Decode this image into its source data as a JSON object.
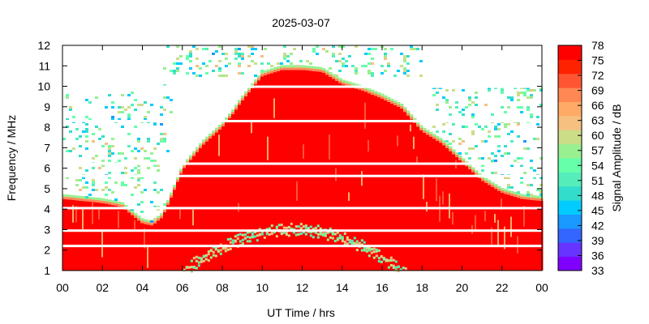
{
  "chart_data": {
    "type": "heatmap",
    "title": "2025-03-07",
    "xlabel": "UT Time / hrs",
    "ylabel": "Frequency / MHz",
    "colorbar_label": "Signal Amplitude / dB",
    "x_ticks": [
      "00",
      "02",
      "04",
      "06",
      "08",
      "10",
      "12",
      "14",
      "16",
      "18",
      "20",
      "22",
      "00"
    ],
    "x_range_hours": [
      0,
      24
    ],
    "y_ticks": [
      "1",
      "2",
      "3",
      "4",
      "5",
      "6",
      "7",
      "8",
      "9",
      "10",
      "11",
      "12"
    ],
    "y_range_mhz": [
      1,
      12
    ],
    "colorbar_ticks": [
      "33",
      "36",
      "39",
      "42",
      "45",
      "48",
      "51",
      "54",
      "57",
      "60",
      "63",
      "66",
      "69",
      "72",
      "75",
      "78"
    ],
    "colorbar_range_db": [
      33,
      78
    ],
    "colormap": [
      "#8000ff",
      "#6633ff",
      "#3366ff",
      "#1a99ff",
      "#00ccff",
      "#33ddcc",
      "#55eebb",
      "#66ffaa",
      "#99f090",
      "#ccdd88",
      "#f5c080",
      "#ffaa66",
      "#ff8855",
      "#ff5533",
      "#ff2200",
      "#ff0000"
    ],
    "saturated_region": {
      "description": "intense (~78 dB) band below the foF2 envelope",
      "envelope_hours": [
        0,
        1,
        2,
        3,
        3.5,
        4,
        4.5,
        5,
        5.5,
        6,
        7,
        8,
        8.5,
        9,
        10,
        11,
        12,
        13,
        14,
        15,
        16,
        17,
        18,
        19,
        20,
        21,
        22,
        23,
        24
      ],
      "envelope_mhz": [
        4.5,
        4.4,
        4.3,
        4.1,
        3.7,
        3.3,
        3.2,
        3.6,
        4.7,
        5.9,
        7.1,
        8.0,
        8.6,
        9.3,
        10.5,
        10.8,
        10.8,
        10.7,
        10.1,
        9.8,
        9.4,
        8.9,
        7.8,
        7.2,
        6.3,
        5.4,
        4.8,
        4.5,
        4.4
      ]
    },
    "white_gaps_mhz": [
      2.2,
      2.95,
      4.05,
      5.62,
      6.22,
      8.3,
      9.98
    ]
  }
}
